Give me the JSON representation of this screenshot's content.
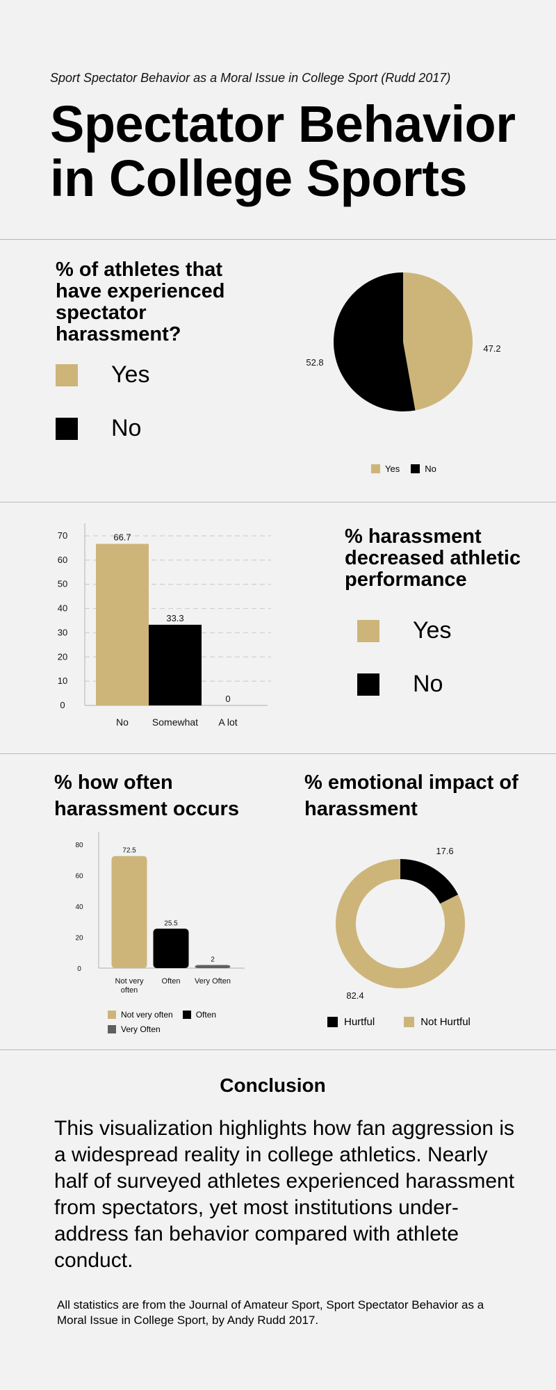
{
  "header": {
    "subtitle": "Sport Spectator Behavior as a Moral Issue in College Sport (Rudd 2017)",
    "title": "Spectator Behavior in College Sports"
  },
  "colors": {
    "gold": "#cdb57a",
    "black": "#000000",
    "gray": "#5f5f5f",
    "background": "#f2f2f2",
    "grid": "#cfcfcf"
  },
  "section1": {
    "question": "% of athletes that have experienced spectator harassment?",
    "key": [
      {
        "label": "Yes",
        "color": "#cdb57a"
      },
      {
        "label": "No",
        "color": "#000000"
      }
    ],
    "legend": [
      {
        "label": "Yes",
        "color": "#cdb57a"
      },
      {
        "label": "No",
        "color": "#000000"
      }
    ]
  },
  "section2": {
    "question": "% harassment decreased athletic performance",
    "key": [
      {
        "label": "Yes",
        "color": "#cdb57a"
      },
      {
        "label": "No",
        "color": "#000000"
      }
    ]
  },
  "section3": {
    "left_title": "% how often harassment occurs",
    "right_title": "% emotional impact of harassment",
    "bar_legend": [
      {
        "label": "Not very often",
        "color": "#cdb57a"
      },
      {
        "label": "Often",
        "color": "#000000"
      },
      {
        "label": "Very Often",
        "color": "#5f5f5f"
      }
    ],
    "donut_legend": [
      {
        "label": "Hurtful",
        "color": "#000000"
      },
      {
        "label": "Not Hurtful",
        "color": "#cdb57a"
      }
    ]
  },
  "conclusion": {
    "title": "Conclusion",
    "body": "This visualization highlights how fan aggression is a widespread reality in college athletics. Nearly half of surveyed athletes experienced harassment from spectators, yet most institutions under-address fan behavior compared with athlete conduct.",
    "source": "All statistics are from the Journal of Amateur Sport, Sport Spectator Behavior as a Moral Issue in College Sport, by Andy Rudd 2017."
  },
  "chart_data": [
    {
      "type": "pie",
      "title": "% of athletes that have experienced spectator harassment?",
      "categories": [
        "Yes",
        "No"
      ],
      "values": [
        47.2,
        52.8
      ],
      "colors": [
        "#cdb57a",
        "#000000"
      ],
      "labels": [
        "47.2",
        "52.8"
      ],
      "legend": "bottom"
    },
    {
      "type": "bar",
      "title": "% harassment decreased athletic performance",
      "categories": [
        "No",
        "Somewhat",
        "A lot"
      ],
      "values": [
        66.7,
        33.3,
        0
      ],
      "labels": [
        "66.7",
        "33.3",
        "0"
      ],
      "colors": [
        "#cdb57a",
        "#000000",
        "#5f5f5f"
      ],
      "ylim": [
        0,
        70
      ],
      "yticks": [
        "0",
        "10",
        "20",
        "30",
        "40",
        "50",
        "60",
        "70"
      ],
      "grid": true
    },
    {
      "type": "bar",
      "title": "% how often harassment occurs",
      "categories": [
        "Not very often",
        "Often",
        "Very Often"
      ],
      "values": [
        72.5,
        25.5,
        2
      ],
      "labels": [
        "72.5",
        "25.5",
        "2"
      ],
      "colors": [
        "#cdb57a",
        "#000000",
        "#5f5f5f"
      ],
      "ylim": [
        0,
        80
      ],
      "yticks": [
        "0",
        "20",
        "40",
        "60",
        "80"
      ],
      "grid": false,
      "legend": "bottom"
    },
    {
      "type": "pie",
      "title": "% emotional impact of harassment",
      "categories": [
        "Hurtful",
        "Not Hurtful"
      ],
      "values": [
        17.6,
        82.4
      ],
      "labels": [
        "17.6",
        "82.4"
      ],
      "colors": [
        "#000000",
        "#cdb57a"
      ],
      "legend": "bottom"
    }
  ]
}
